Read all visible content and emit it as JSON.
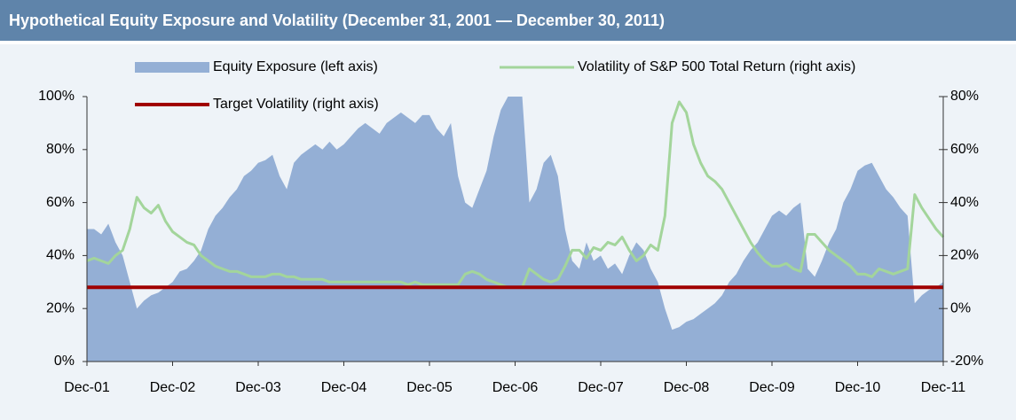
{
  "chart_data": {
    "type": "area",
    "title": "Hypothetical Equity Exposure and Volatility (December 31, 2001 — December 30, 2011)",
    "categories": [
      "Dec-01",
      null,
      null,
      null,
      null,
      null,
      null,
      null,
      null,
      null,
      null,
      null,
      "Dec-02",
      null,
      null,
      null,
      null,
      null,
      null,
      null,
      null,
      null,
      null,
      null,
      "Dec-03",
      null,
      null,
      null,
      null,
      null,
      null,
      null,
      null,
      null,
      null,
      null,
      "Dec-04",
      null,
      null,
      null,
      null,
      null,
      null,
      null,
      null,
      null,
      null,
      null,
      "Dec-05",
      null,
      null,
      null,
      null,
      null,
      null,
      null,
      null,
      null,
      null,
      null,
      "Dec-06",
      null,
      null,
      null,
      null,
      null,
      null,
      null,
      null,
      null,
      null,
      null,
      "Dec-07",
      null,
      null,
      null,
      null,
      null,
      null,
      null,
      null,
      null,
      null,
      null,
      "Dec-08",
      null,
      null,
      null,
      null,
      null,
      null,
      null,
      null,
      null,
      null,
      null,
      "Dec-09",
      null,
      null,
      null,
      null,
      null,
      null,
      null,
      null,
      null,
      null,
      null,
      "Dec-10",
      null,
      null,
      null,
      null,
      null,
      null,
      null,
      null,
      null,
      null,
      null,
      "Dec-11"
    ],
    "series": [
      {
        "name": "Equity Exposure (left axis)",
        "type": "area",
        "color": "#94afd5",
        "values": [
          50,
          50,
          48,
          52,
          45,
          40,
          30,
          20,
          23,
          25,
          26,
          28,
          30,
          34,
          35,
          38,
          42,
          50,
          55,
          58,
          62,
          65,
          70,
          72,
          75,
          76,
          78,
          70,
          65,
          75,
          78,
          80,
          82,
          80,
          83,
          80,
          82,
          85,
          88,
          90,
          88,
          86,
          90,
          92,
          94,
          92,
          90,
          93,
          93,
          88,
          85,
          90,
          70,
          60,
          58,
          65,
          72,
          85,
          95,
          100,
          100,
          100,
          60,
          65,
          75,
          78,
          70,
          50,
          38,
          35,
          45,
          38,
          40,
          35,
          37,
          33,
          40,
          45,
          42,
          35,
          30,
          20,
          12,
          13,
          15,
          16,
          18,
          20,
          22,
          25,
          30,
          33,
          38,
          42,
          45,
          50,
          55,
          57,
          55,
          58,
          60,
          35,
          32,
          38,
          45,
          50,
          60,
          65,
          72,
          74,
          75,
          70,
          65,
          62,
          58,
          55,
          22,
          25,
          27,
          28,
          30
        ]
      },
      {
        "name": "Volatility of S&P 500 Total Return (right axis)",
        "type": "line",
        "axis": "y2",
        "color": "#a3d59b",
        "values": [
          18,
          19,
          18,
          17,
          20,
          22,
          30,
          42,
          38,
          36,
          39,
          33,
          29,
          27,
          25,
          24,
          20,
          18,
          16,
          15,
          14,
          14,
          13,
          12,
          12,
          12,
          13,
          13,
          12,
          12,
          11,
          11,
          11,
          11,
          10,
          10,
          10,
          10,
          10,
          10,
          10,
          10,
          10,
          10,
          10,
          9,
          10,
          9,
          9,
          9,
          9,
          9,
          9,
          13,
          14,
          13,
          11,
          10,
          9,
          8,
          8,
          8,
          15,
          13,
          11,
          10,
          11,
          16,
          22,
          22,
          19,
          23,
          22,
          25,
          24,
          27,
          22,
          18,
          20,
          24,
          22,
          35,
          70,
          78,
          74,
          62,
          55,
          50,
          48,
          45,
          40,
          35,
          30,
          25,
          21,
          18,
          16,
          16,
          17,
          15,
          14,
          28,
          28,
          25,
          22,
          20,
          18,
          16,
          13,
          13,
          12,
          15,
          14,
          13,
          14,
          15,
          43,
          38,
          34,
          30,
          27
        ]
      }
    ],
    "hlines": [
      {
        "name": "Target Volatility (right axis)",
        "axis": "y2",
        "color": "#a00000",
        "value": 8
      }
    ],
    "ylim": [
      0,
      100
    ],
    "yticks": [
      {
        "value": 0,
        "label": "0%"
      },
      {
        "value": 20,
        "label": "20%"
      },
      {
        "value": 40,
        "label": "40%"
      },
      {
        "value": 60,
        "label": "60%"
      },
      {
        "value": 80,
        "label": "80%"
      },
      {
        "value": 100,
        "label": "100%"
      }
    ],
    "y2lim": [
      -20,
      80
    ],
    "y2ticks": [
      {
        "value": -20,
        "label": "-20%"
      },
      {
        "value": 0,
        "label": "0%"
      },
      {
        "value": 20,
        "label": "20%"
      },
      {
        "value": 40,
        "label": "40%"
      },
      {
        "value": 60,
        "label": "60%"
      },
      {
        "value": 80,
        "label": "80%"
      }
    ],
    "grid": false
  }
}
